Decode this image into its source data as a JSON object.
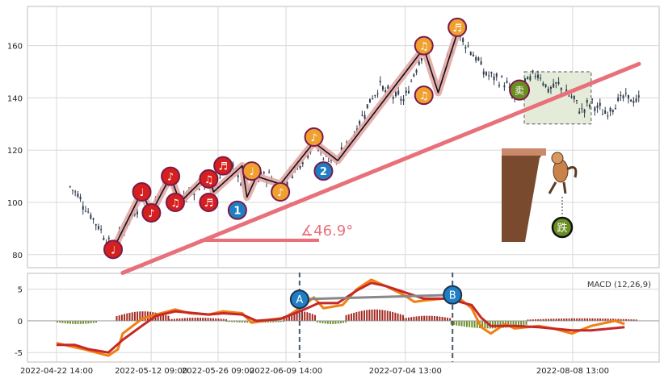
{
  "chart_data": [
    {
      "type": "candlestick",
      "y_ticks": [
        80,
        100,
        120,
        140,
        160
      ],
      "ylim": [
        75,
        175
      ],
      "x_range": [
        "2022-04-22 14:00",
        "2022-08-22 14:00"
      ],
      "grid": true,
      "close_series": [
        {
          "x": "2022-04-25 10:00",
          "y": 106
        },
        {
          "x": "2022-04-27 10:00",
          "y": 102
        },
        {
          "x": "2022-04-29 10:00",
          "y": 96
        },
        {
          "x": "2022-05-02 10:00",
          "y": 88
        },
        {
          "x": "2022-05-04 10:00",
          "y": 82
        },
        {
          "x": "2022-05-06 10:00",
          "y": 89
        },
        {
          "x": "2022-05-09 10:00",
          "y": 98
        },
        {
          "x": "2022-05-10 10:00",
          "y": 104
        },
        {
          "x": "2022-05-11 10:00",
          "y": 100
        },
        {
          "x": "2022-05-12 10:00",
          "y": 96
        },
        {
          "x": "2022-05-13 10:00",
          "y": 102
        },
        {
          "x": "2022-05-16 10:00",
          "y": 110
        },
        {
          "x": "2022-05-17 10:00",
          "y": 103
        },
        {
          "x": "2022-05-18 10:00",
          "y": 100
        },
        {
          "x": "2022-05-20 10:00",
          "y": 104
        },
        {
          "x": "2022-05-23 10:00",
          "y": 107
        },
        {
          "x": "2022-05-24 10:00",
          "y": 111
        },
        {
          "x": "2022-05-25 10:00",
          "y": 104
        },
        {
          "x": "2022-05-26 10:00",
          "y": 108
        },
        {
          "x": "2022-05-27 10:00",
          "y": 112
        },
        {
          "x": "2022-05-30 10:00",
          "y": 112
        },
        {
          "x": "2022-05-31 10:00",
          "y": 106
        },
        {
          "x": "2022-06-01 10:00",
          "y": 102
        },
        {
          "x": "2022-06-02 10:00",
          "y": 106
        },
        {
          "x": "2022-06-03 10:00",
          "y": 110
        },
        {
          "x": "2022-06-06 10:00",
          "y": 110
        },
        {
          "x": "2022-06-08 10:00",
          "y": 104
        },
        {
          "x": "2022-06-09 10:00",
          "y": 108
        },
        {
          "x": "2022-06-13 10:00",
          "y": 118
        },
        {
          "x": "2022-06-15 10:00",
          "y": 123
        },
        {
          "x": "2022-06-17 10:00",
          "y": 118
        },
        {
          "x": "2022-06-20 10:00",
          "y": 116
        },
        {
          "x": "2022-06-23 10:00",
          "y": 125
        },
        {
          "x": "2022-06-27 10:00",
          "y": 140
        },
        {
          "x": "2022-06-29 10:00",
          "y": 145
        },
        {
          "x": "2022-06-30 10:00",
          "y": 142
        },
        {
          "x": "2022-07-04 10:00",
          "y": 139
        },
        {
          "x": "2022-07-06 10:00",
          "y": 150
        },
        {
          "x": "2022-07-08 10:00",
          "y": 159
        },
        {
          "x": "2022-07-11 10:00",
          "y": 142
        },
        {
          "x": "2022-07-13 10:00",
          "y": 154
        },
        {
          "x": "2022-07-15 10:00",
          "y": 165
        },
        {
          "x": "2022-07-18 10:00",
          "y": 158
        },
        {
          "x": "2022-07-21 10:00",
          "y": 149
        },
        {
          "x": "2022-07-25 10:00",
          "y": 146
        },
        {
          "x": "2022-07-27 10:00",
          "y": 139
        },
        {
          "x": "2022-07-29 10:00",
          "y": 145
        },
        {
          "x": "2022-08-01 10:00",
          "y": 150
        },
        {
          "x": "2022-08-03 10:00",
          "y": 143
        },
        {
          "x": "2022-08-05 10:00",
          "y": 145
        },
        {
          "x": "2022-08-08 10:00",
          "y": 140
        },
        {
          "x": "2022-08-10 10:00",
          "y": 135
        },
        {
          "x": "2022-08-12 10:00",
          "y": 138
        },
        {
          "x": "2022-08-15 10:00",
          "y": 134
        },
        {
          "x": "2022-08-17 10:00",
          "y": 138
        },
        {
          "x": "2022-08-19 10:00",
          "y": 140
        },
        {
          "x": "2022-08-22 10:00",
          "y": 139
        }
      ],
      "wave_path": [
        {
          "x": "2022-05-04 10:00",
          "y": 82
        },
        {
          "x": "2022-05-10 10:00",
          "y": 104
        },
        {
          "x": "2022-05-12 10:00",
          "y": 96
        },
        {
          "x": "2022-05-16 10:00",
          "y": 110
        },
        {
          "x": "2022-05-18 10:00",
          "y": 100
        },
        {
          "x": "2022-05-24 10:00",
          "y": 111
        },
        {
          "x": "2022-05-25 10:00",
          "y": 104
        },
        {
          "x": "2022-05-31 10:00",
          "y": 114
        },
        {
          "x": "2022-06-01 10:00",
          "y": 102
        },
        {
          "x": "2022-06-03 10:00",
          "y": 110
        },
        {
          "x": "2022-06-08 10:00",
          "y": 107
        },
        {
          "x": "2022-06-15 10:00",
          "y": 123
        },
        {
          "x": "2022-06-20 10:00",
          "y": 116
        },
        {
          "x": "2022-07-08 10:00",
          "y": 159
        },
        {
          "x": "2022-07-11 10:00",
          "y": 142
        },
        {
          "x": "2022-07-15 10:00",
          "y": 165
        }
      ],
      "trendline": {
        "from": {
          "x": "2022-05-06 10:00",
          "y": 73
        },
        "to": {
          "x": "2022-08-22 10:00",
          "y": 153
        }
      },
      "angle_label": "∡46.9°",
      "markers": [
        {
          "glyph": "♩",
          "x": "2022-05-04 10:00",
          "y": 82,
          "color": "#d61f1f"
        },
        {
          "glyph": "♩",
          "x": "2022-05-10 10:00",
          "y": 104,
          "color": "#d61f1f"
        },
        {
          "glyph": "♪",
          "x": "2022-05-12 10:00",
          "y": 96,
          "color": "#d61f1f"
        },
        {
          "glyph": "♪",
          "x": "2022-05-16 10:00",
          "y": 110,
          "color": "#d61f1f"
        },
        {
          "glyph": "♫",
          "x": "2022-05-17 10:00",
          "y": 100,
          "color": "#d61f1f"
        },
        {
          "glyph": "♫",
          "x": "2022-05-24 10:00",
          "y": 109,
          "color": "#d61f1f"
        },
        {
          "glyph": "♬",
          "x": "2022-05-24 10:00",
          "y": 100,
          "color": "#d61f1f"
        },
        {
          "glyph": "♬",
          "x": "2022-05-27 10:00",
          "y": 114,
          "color": "#d61f1f"
        },
        {
          "glyph": "1",
          "x": "2022-05-30 10:00",
          "y": 97,
          "color": "#1f7fc4"
        },
        {
          "glyph": "♩",
          "x": "2022-06-02 10:00",
          "y": 112,
          "color": "#f0a030"
        },
        {
          "glyph": "♪",
          "x": "2022-06-08 10:00",
          "y": 104,
          "color": "#f0a030"
        },
        {
          "glyph": "♪",
          "x": "2022-06-15 10:00",
          "y": 125,
          "color": "#f0a030"
        },
        {
          "glyph": "2",
          "x": "2022-06-17 10:00",
          "y": 112,
          "color": "#1f7fc4"
        },
        {
          "glyph": "♫",
          "x": "2022-07-08 10:00",
          "y": 160,
          "color": "#f0a030"
        },
        {
          "glyph": "♫",
          "x": "2022-07-08 10:00",
          "y": 141,
          "color": "#f0a030"
        },
        {
          "glyph": "♬",
          "x": "2022-07-15 10:00",
          "y": 167,
          "color": "#f0a030"
        }
      ],
      "sell_marker": {
        "text": "卖",
        "x": "2022-07-28 10:00",
        "y": 143
      },
      "fall_marker": {
        "text": "跌"
      },
      "forecast_box": {
        "x_from": "2022-07-29 10:00",
        "x_to": "2022-08-12 10:00",
        "y_from": 130,
        "y_to": 150
      }
    },
    {
      "type": "macd",
      "legend": "MACD (12,26,9)",
      "y_ticks": [
        5,
        0,
        -5
      ],
      "ylim": [
        -6.5,
        7.5
      ],
      "x_tick_labels": [
        "2022-04-22 14:00",
        "2022-05-12 09:00",
        "2022-05-26 09:00",
        "2022-06-09 14:00",
        "2022-07-04 13:00",
        "2022-08-08 13:00"
      ],
      "series": [
        {
          "color": "#f07f10",
          "points": [
            [
              "2022-04-22 14:00",
              -3.5
            ],
            [
              "2022-04-25 10:00",
              -4.0
            ],
            [
              "2022-04-28 10:00",
              -4.5
            ],
            [
              "2022-05-03 10:00",
              -5.5
            ],
            [
              "2022-05-05 10:00",
              -4.5
            ],
            [
              "2022-05-06 10:00",
              -2.0
            ],
            [
              "2022-05-10 10:00",
              0.3
            ],
            [
              "2022-05-12 10:00",
              0.8
            ],
            [
              "2022-05-17 10:00",
              1.8
            ],
            [
              "2022-05-20 10:00",
              1.2
            ],
            [
              "2022-05-24 10:00",
              1.0
            ],
            [
              "2022-05-27 10:00",
              1.5
            ],
            [
              "2022-05-31 10:00",
              1.2
            ],
            [
              "2022-06-02 10:00",
              -0.3
            ],
            [
              "2022-06-06 10:00",
              0.2
            ],
            [
              "2022-06-09 10:00",
              0.5
            ],
            [
              "2022-06-13 10:00",
              2.5
            ],
            [
              "2022-06-15 10:00",
              3.7
            ],
            [
              "2022-06-17 10:00",
              2.0
            ],
            [
              "2022-06-21 10:00",
              2.5
            ],
            [
              "2022-06-24 10:00",
              5.0
            ],
            [
              "2022-06-27 10:00",
              6.5
            ],
            [
              "2022-06-30 10:00",
              5.5
            ],
            [
              "2022-07-04 10:00",
              4.0
            ],
            [
              "2022-07-06 10:00",
              3.0
            ],
            [
              "2022-07-08 10:00",
              3.2
            ],
            [
              "2022-07-12 10:00",
              3.5
            ],
            [
              "2022-07-15 10:00",
              3.8
            ],
            [
              "2022-07-18 10:00",
              2.0
            ],
            [
              "2022-07-20 10:00",
              -1.0
            ],
            [
              "2022-07-22 10:00",
              -2.0
            ],
            [
              "2022-07-25 10:00",
              -0.5
            ],
            [
              "2022-07-27 10:00",
              -1.2
            ],
            [
              "2022-08-01 10:00",
              -0.8
            ],
            [
              "2022-08-04 10:00",
              -1.2
            ],
            [
              "2022-08-08 10:00",
              -2.0
            ],
            [
              "2022-08-12 10:00",
              -0.8
            ],
            [
              "2022-08-17 10:00",
              0.0
            ],
            [
              "2022-08-19 10:00",
              -0.5
            ]
          ]
        },
        {
          "color": "#c62828",
          "points": [
            [
              "2022-04-22 14:00",
              -3.8
            ],
            [
              "2022-04-26 10:00",
              -3.8
            ],
            [
              "2022-04-29 10:00",
              -4.5
            ],
            [
              "2022-05-03 10:00",
              -5.0
            ],
            [
              "2022-05-06 10:00",
              -3.0
            ],
            [
              "2022-05-10 10:00",
              -0.8
            ],
            [
              "2022-05-13 10:00",
              0.8
            ],
            [
              "2022-05-17 10:00",
              1.5
            ],
            [
              "2022-05-24 10:00",
              1.0
            ],
            [
              "2022-05-27 10:00",
              1.2
            ],
            [
              "2022-05-31 10:00",
              1.0
            ],
            [
              "2022-06-03 10:00",
              0.0
            ],
            [
              "2022-06-08 10:00",
              0.3
            ],
            [
              "2022-06-13 10:00",
              1.8
            ],
            [
              "2022-06-16 10:00",
              2.8
            ],
            [
              "2022-06-20 10:00",
              2.8
            ],
            [
              "2022-06-24 10:00",
              4.8
            ],
            [
              "2022-06-27 10:00",
              6.0
            ],
            [
              "2022-06-30 10:00",
              5.5
            ],
            [
              "2022-07-04 10:00",
              4.5
            ],
            [
              "2022-07-08 10:00",
              3.5
            ],
            [
              "2022-07-13 10:00",
              3.5
            ],
            [
              "2022-07-18 10:00",
              2.5
            ],
            [
              "2022-07-20 10:00",
              0.5
            ],
            [
              "2022-07-22 10:00",
              -0.8
            ],
            [
              "2022-07-27 10:00",
              -0.8
            ],
            [
              "2022-08-01 10:00",
              -1.0
            ],
            [
              "2022-08-08 10:00",
              -1.5
            ],
            [
              "2022-08-12 10:00",
              -1.5
            ],
            [
              "2022-08-19 10:00",
              -1.0
            ]
          ]
        }
      ],
      "histogram": [
        {
          "x": "2022-04-22 14:00",
          "x_to": "2022-05-01 00:00",
          "v": -0.5
        },
        {
          "x": "2022-05-05 00:00",
          "x_to": "2022-05-16 00:00",
          "v": 1.5
        },
        {
          "x": "2022-05-16 00:00",
          "x_to": "2022-05-28 00:00",
          "v": 0.5
        },
        {
          "x": "2022-05-28 00:00",
          "x_to": "2022-06-09 00:00",
          "v": -0.3
        },
        {
          "x": "2022-06-09 00:00",
          "x_to": "2022-06-16 00:00",
          "v": 1.5
        },
        {
          "x": "2022-06-16 00:00",
          "x_to": "2022-06-22 00:00",
          "v": -0.5
        },
        {
          "x": "2022-06-22 00:00",
          "x_to": "2022-07-04 00:00",
          "v": 1.8
        },
        {
          "x": "2022-07-04 00:00",
          "x_to": "2022-07-14 00:00",
          "v": 0.8
        },
        {
          "x": "2022-07-14 00:00",
          "x_to": "2022-07-30 00:00",
          "v": -1.2
        },
        {
          "x": "2022-07-30 00:00",
          "x_to": "2022-08-22 00:00",
          "v": 0.4
        }
      ],
      "divergence_markers": [
        {
          "label": "A",
          "x": "2022-06-12 10:00",
          "y": 3.4
        },
        {
          "label": "B",
          "x": "2022-07-14 10:00",
          "y": 4.1
        }
      ]
    }
  ],
  "colors": {
    "up": "#2f3b4c",
    "trend": "#e8707a",
    "wave": "#e3a7a7",
    "grid": "#d8d8d8"
  }
}
